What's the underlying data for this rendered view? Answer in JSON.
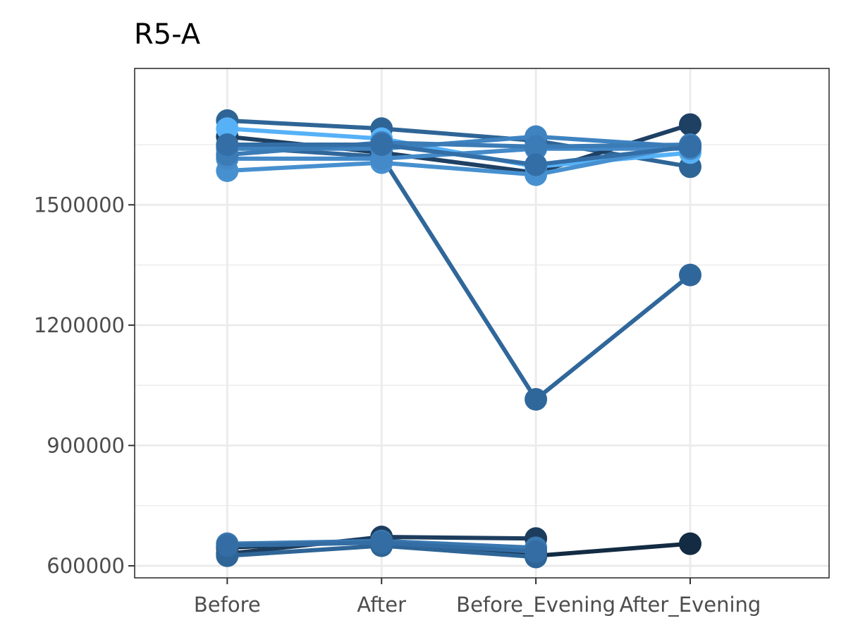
{
  "chart_data": {
    "type": "line",
    "title": "R5-A",
    "xlabel": "",
    "ylabel": "",
    "categories": [
      "Before",
      "After",
      "Before_Evening",
      "After_Evening"
    ],
    "yticks": [
      600000,
      900000,
      1200000,
      1500000
    ],
    "ytick_labels": [
      "600000",
      "900000",
      "1200000",
      "1500000"
    ],
    "ylim": [
      570000,
      1840000
    ],
    "grid": true,
    "legend": "none",
    "series": [
      {
        "color": "#132b43",
        "values": [
          645000,
          665000,
          625000,
          655000
        ]
      },
      {
        "color": "#1d3d5e",
        "values": [
          630000,
          672000,
          668000,
          null
        ]
      },
      {
        "color": "#2e6596",
        "values": [
          625000,
          650000,
          622000,
          null
        ]
      },
      {
        "color": "#3a78b0",
        "values": [
          655000,
          662000,
          645000,
          null
        ]
      },
      {
        "color": "#336da4",
        "values": [
          650000,
          658000,
          635000,
          null
        ]
      },
      {
        "color": "#2e6596",
        "values": [
          1710000,
          1690000,
          1660000,
          1595000
        ]
      },
      {
        "color": "#30679b",
        "values": [
          1645000,
          1620000,
          1015000,
          1325000
        ]
      },
      {
        "color": "#1e4063",
        "values": [
          1670000,
          1630000,
          1580000,
          1700000
        ]
      },
      {
        "color": "#56b1f7",
        "values": [
          1690000,
          1665000,
          1595000,
          1630000
        ]
      },
      {
        "color": "#3f83c0",
        "values": [
          1640000,
          1640000,
          1670000,
          1645000
        ]
      },
      {
        "color": "#4790cf",
        "values": [
          1585000,
          1605000,
          1575000,
          1650000
        ]
      },
      {
        "color": "#4489c8",
        "values": [
          1615000,
          1615000,
          1640000,
          1640000
        ]
      },
      {
        "color": "#3b7bb6",
        "values": [
          1625000,
          1655000,
          1645000,
          1650000
        ]
      },
      {
        "color": "#336ea6",
        "values": [
          1650000,
          1650000,
          1600000,
          1645000
        ]
      }
    ]
  }
}
